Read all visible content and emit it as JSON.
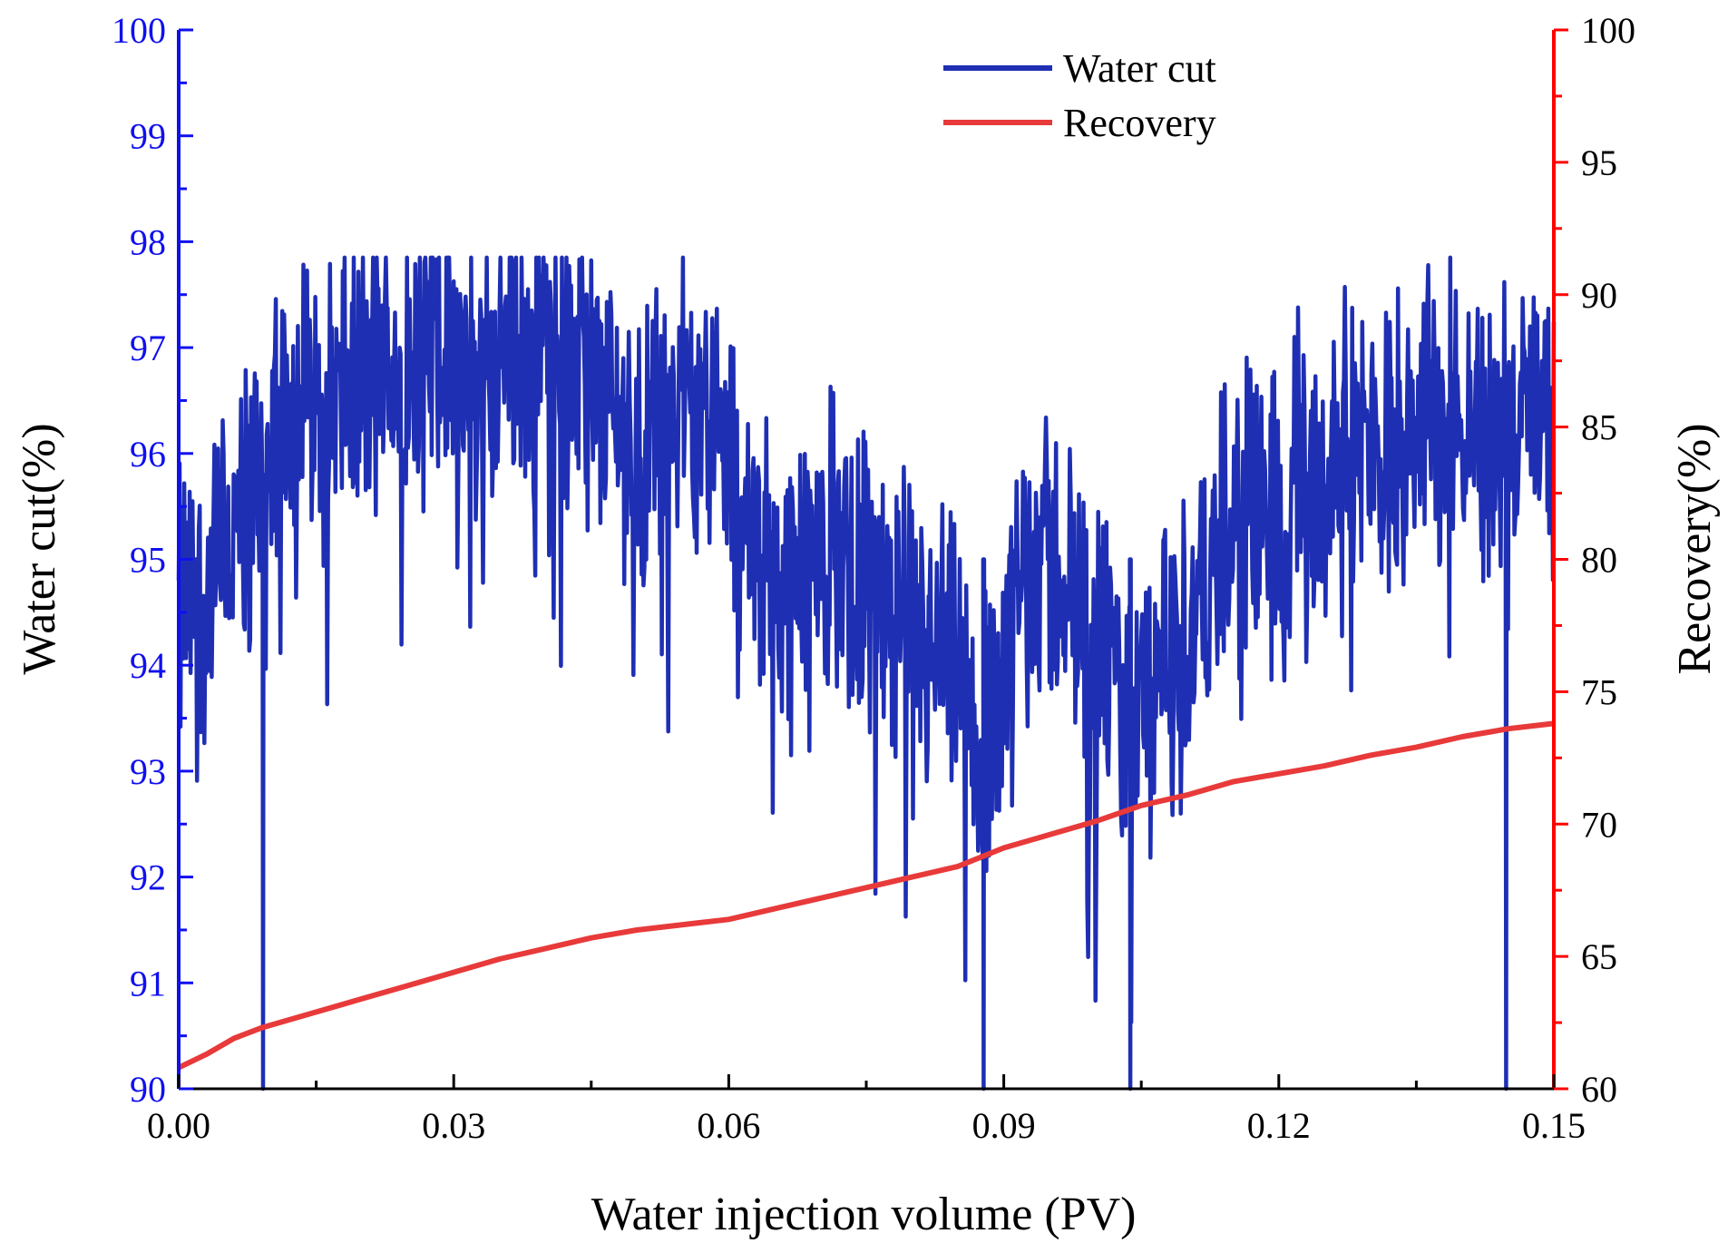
{
  "chart_data": {
    "type": "line",
    "title": "",
    "xlabel": "Water injection volume (PV)",
    "ylabel_left": "Water cut(%)",
    "ylabel_right": "Recovery(%)",
    "xlim": [
      0,
      0.15
    ],
    "ylim_left": [
      90,
      100
    ],
    "ylim_right": [
      60,
      100
    ],
    "x_ticks": [
      0,
      0.03,
      0.06,
      0.09,
      0.12,
      0.15
    ],
    "x_tick_labels": [
      "0.00",
      "0.03",
      "0.06",
      "0.09",
      "0.12",
      "0.15"
    ],
    "y_left_ticks": [
      90,
      91,
      92,
      93,
      94,
      95,
      96,
      97,
      98,
      99,
      100
    ],
    "y_left_tick_labels": [
      "90",
      "91",
      "92",
      "93",
      "94",
      "95",
      "96",
      "97",
      "98",
      "99",
      "100"
    ],
    "y_right_ticks": [
      60,
      65,
      70,
      75,
      80,
      85,
      90,
      95,
      100
    ],
    "y_right_tick_labels": [
      "60",
      "65",
      "70",
      "75",
      "80",
      "85",
      "90",
      "95",
      "100"
    ],
    "grid": false,
    "legend_position": "top-right",
    "colors": {
      "water_cut": "#1f2fb4",
      "recovery": "#e83a3a",
      "left_axis": "#1010ee",
      "right_axis": "#ff0000",
      "axis": "#000000"
    },
    "series": [
      {
        "name": "Water cut",
        "axis": "left",
        "x": [
          0,
          0.003,
          0.006,
          0.009,
          0.0092,
          0.0095,
          0.012,
          0.015,
          0.018,
          0.021,
          0.024,
          0.027,
          0.03,
          0.033,
          0.036,
          0.039,
          0.042,
          0.045,
          0.048,
          0.051,
          0.054,
          0.057,
          0.06,
          0.063,
          0.066,
          0.069,
          0.072,
          0.075,
          0.078,
          0.081,
          0.084,
          0.086,
          0.0875,
          0.0878,
          0.09,
          0.093,
          0.096,
          0.099,
          0.102,
          0.1035,
          0.1038,
          0.106,
          0.109,
          0.112,
          0.115,
          0.118,
          0.121,
          0.124,
          0.127,
          0.13,
          0.133,
          0.136,
          0.139,
          0.142,
          0.1445,
          0.1448,
          0.147,
          0.15
        ],
        "values": [
          94.5,
          94.6,
          95.2,
          95.8,
          90.0,
          95.6,
          96.8,
          96.5,
          96.6,
          96.7,
          96.9,
          97.1,
          96.9,
          96.8,
          97.0,
          97.1,
          97.0,
          96.7,
          96.3,
          96.1,
          96.4,
          96.7,
          95.8,
          95.2,
          94.8,
          94.9,
          95.2,
          95.0,
          94.4,
          94.1,
          93.9,
          93.5,
          93.2,
          90.0,
          94.0,
          95.3,
          94.8,
          94.4,
          93.8,
          93.4,
          90.0,
          93.6,
          94.0,
          94.6,
          95.2,
          95.5,
          95.7,
          95.8,
          95.9,
          96.0,
          96.3,
          96.4,
          96.4,
          96.2,
          96.0,
          90.0,
          96.5,
          96.2
        ],
        "noise_amplitude": 1.2
      },
      {
        "name": "Recovery",
        "axis": "right",
        "x": [
          0,
          0.003,
          0.006,
          0.009,
          0.012,
          0.015,
          0.02,
          0.025,
          0.03,
          0.035,
          0.04,
          0.045,
          0.05,
          0.055,
          0.06,
          0.065,
          0.07,
          0.075,
          0.08,
          0.085,
          0.09,
          0.095,
          0.1,
          0.105,
          0.11,
          0.115,
          0.12,
          0.125,
          0.13,
          0.135,
          0.14,
          0.145,
          0.15
        ],
        "values": [
          60.8,
          61.3,
          61.9,
          62.3,
          62.6,
          62.9,
          63.4,
          63.9,
          64.4,
          64.9,
          65.3,
          65.7,
          66.0,
          66.2,
          66.4,
          66.8,
          67.2,
          67.6,
          68.0,
          68.4,
          69.1,
          69.6,
          70.1,
          70.7,
          71.1,
          71.6,
          71.9,
          72.2,
          72.6,
          72.9,
          73.3,
          73.6,
          73.8
        ]
      }
    ]
  }
}
